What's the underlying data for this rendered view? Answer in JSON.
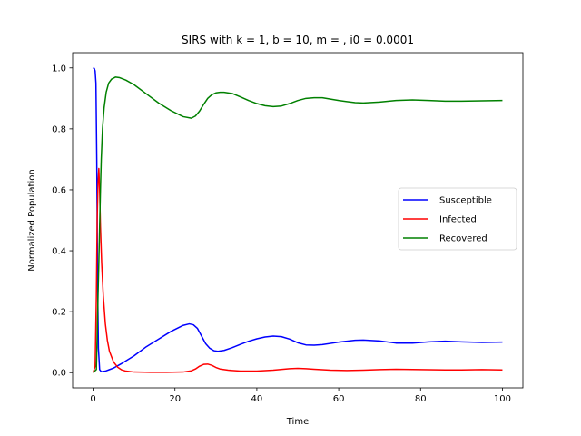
{
  "chart_data": {
    "type": "line",
    "title": "SIRS with k = 1, b = 10, m = , i0 = 0.0001",
    "xlabel": "Time",
    "ylabel": "Normalized Population",
    "xlim": [
      -5,
      105
    ],
    "ylim": [
      -0.05,
      1.05
    ],
    "xticks": [
      0,
      20,
      40,
      60,
      80,
      100
    ],
    "yticks": [
      0.0,
      0.2,
      0.4,
      0.6,
      0.8,
      1.0
    ],
    "xtick_labels": [
      "0",
      "20",
      "40",
      "60",
      "80",
      "100"
    ],
    "ytick_labels": [
      "0.0",
      "0.2",
      "0.4",
      "0.6",
      "0.8",
      "1.0"
    ],
    "grid": false,
    "legend_position": "center-right",
    "series": [
      {
        "name": "Susceptible",
        "color": "#0000ff",
        "x": [
          0,
          0.3,
          0.5,
          0.7,
          0.9,
          1.1,
          1.3,
          1.6,
          2,
          3,
          4,
          5,
          7,
          10,
          13,
          16,
          19,
          22,
          23.5,
          24.5,
          25.5,
          26.5,
          27.5,
          28.5,
          29.5,
          30.5,
          32,
          34,
          36,
          38,
          40,
          42,
          44,
          46,
          48,
          50,
          52,
          54,
          56,
          60,
          64,
          66,
          70,
          74,
          78,
          82,
          86,
          90,
          95,
          100
        ],
        "y": [
          1.0,
          0.998,
          0.99,
          0.95,
          0.7,
          0.3,
          0.08,
          0.01,
          0.003,
          0.005,
          0.01,
          0.015,
          0.03,
          0.055,
          0.085,
          0.11,
          0.135,
          0.155,
          0.16,
          0.157,
          0.145,
          0.12,
          0.095,
          0.08,
          0.072,
          0.07,
          0.073,
          0.082,
          0.093,
          0.103,
          0.111,
          0.117,
          0.12,
          0.118,
          0.11,
          0.098,
          0.091,
          0.09,
          0.092,
          0.1,
          0.106,
          0.107,
          0.104,
          0.097,
          0.097,
          0.101,
          0.103,
          0.101,
          0.099,
          0.1
        ]
      },
      {
        "name": "Infected",
        "color": "#ff0000",
        "x": [
          0,
          0.5,
          0.8,
          1.0,
          1.2,
          1.4,
          1.6,
          1.8,
          2.1,
          2.5,
          3,
          3.5,
          4,
          5,
          6,
          7,
          8,
          10,
          14,
          18,
          22,
          24,
          25,
          26,
          27,
          28,
          29,
          30,
          31,
          33,
          36,
          40,
          44,
          48,
          50,
          52,
          54,
          58,
          62,
          66,
          70,
          74,
          80,
          86,
          90,
          95,
          100
        ],
        "y": [
          0.0001,
          0.02,
          0.25,
          0.5,
          0.62,
          0.67,
          0.6,
          0.48,
          0.36,
          0.25,
          0.16,
          0.105,
          0.07,
          0.035,
          0.018,
          0.009,
          0.005,
          0.002,
          0.001,
          0.001,
          0.002,
          0.006,
          0.012,
          0.021,
          0.027,
          0.028,
          0.024,
          0.017,
          0.012,
          0.008,
          0.005,
          0.005,
          0.008,
          0.013,
          0.014,
          0.013,
          0.011,
          0.008,
          0.007,
          0.008,
          0.01,
          0.011,
          0.01,
          0.009,
          0.009,
          0.01,
          0.009
        ]
      },
      {
        "name": "Recovered",
        "color": "#008000",
        "x": [
          0,
          0.8,
          1.0,
          1.2,
          1.4,
          1.6,
          1.8,
          2.0,
          2.3,
          2.7,
          3.2,
          3.8,
          4.5,
          5.5,
          6.5,
          8,
          10,
          13,
          16,
          19,
          22,
          24,
          25,
          26,
          27,
          28,
          29,
          30,
          31,
          32,
          34,
          36,
          38,
          40,
          42,
          44,
          46,
          48,
          50,
          52,
          54,
          56,
          60,
          64,
          66,
          70,
          74,
          78,
          82,
          86,
          90,
          95,
          100
        ],
        "y": [
          0.0,
          0.01,
          0.12,
          0.25,
          0.36,
          0.48,
          0.6,
          0.7,
          0.8,
          0.87,
          0.92,
          0.95,
          0.963,
          0.97,
          0.968,
          0.96,
          0.945,
          0.915,
          0.885,
          0.86,
          0.84,
          0.835,
          0.842,
          0.858,
          0.88,
          0.9,
          0.912,
          0.918,
          0.92,
          0.92,
          0.916,
          0.905,
          0.893,
          0.883,
          0.876,
          0.873,
          0.875,
          0.883,
          0.893,
          0.9,
          0.902,
          0.902,
          0.893,
          0.886,
          0.885,
          0.888,
          0.893,
          0.895,
          0.893,
          0.891,
          0.891,
          0.892,
          0.893
        ]
      }
    ]
  }
}
